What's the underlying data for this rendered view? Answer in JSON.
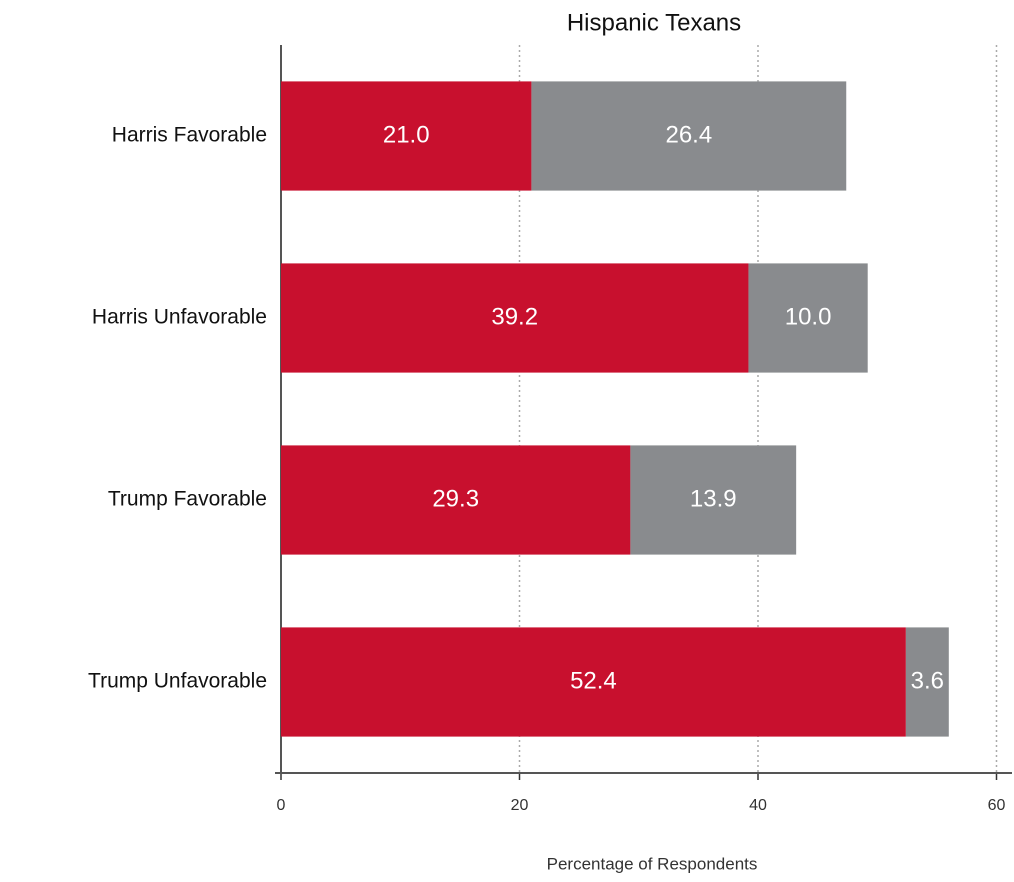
{
  "chart_data": {
    "type": "stacked-barh",
    "title": "Hispanic Texans",
    "xlabel": "Percentage of Respondents",
    "categories": [
      "Harris Favorable",
      "Harris Unfavorable",
      "Trump Favorable",
      "Trump Unfavorable"
    ],
    "series": [
      {
        "color": "#c8102e",
        "values": [
          21.0,
          39.2,
          29.3,
          52.4
        ],
        "value_labels": [
          "21.0",
          "39.2",
          "29.3",
          "52.4"
        ]
      },
      {
        "color": "#898b8e",
        "values": [
          26.4,
          10.0,
          13.9,
          3.6
        ],
        "value_labels": [
          "26.4",
          "10.0",
          "13.9",
          "3.6"
        ]
      }
    ],
    "xlim": [
      0,
      61.3
    ],
    "xticks": [
      0,
      20,
      40,
      60
    ],
    "grid": true
  }
}
